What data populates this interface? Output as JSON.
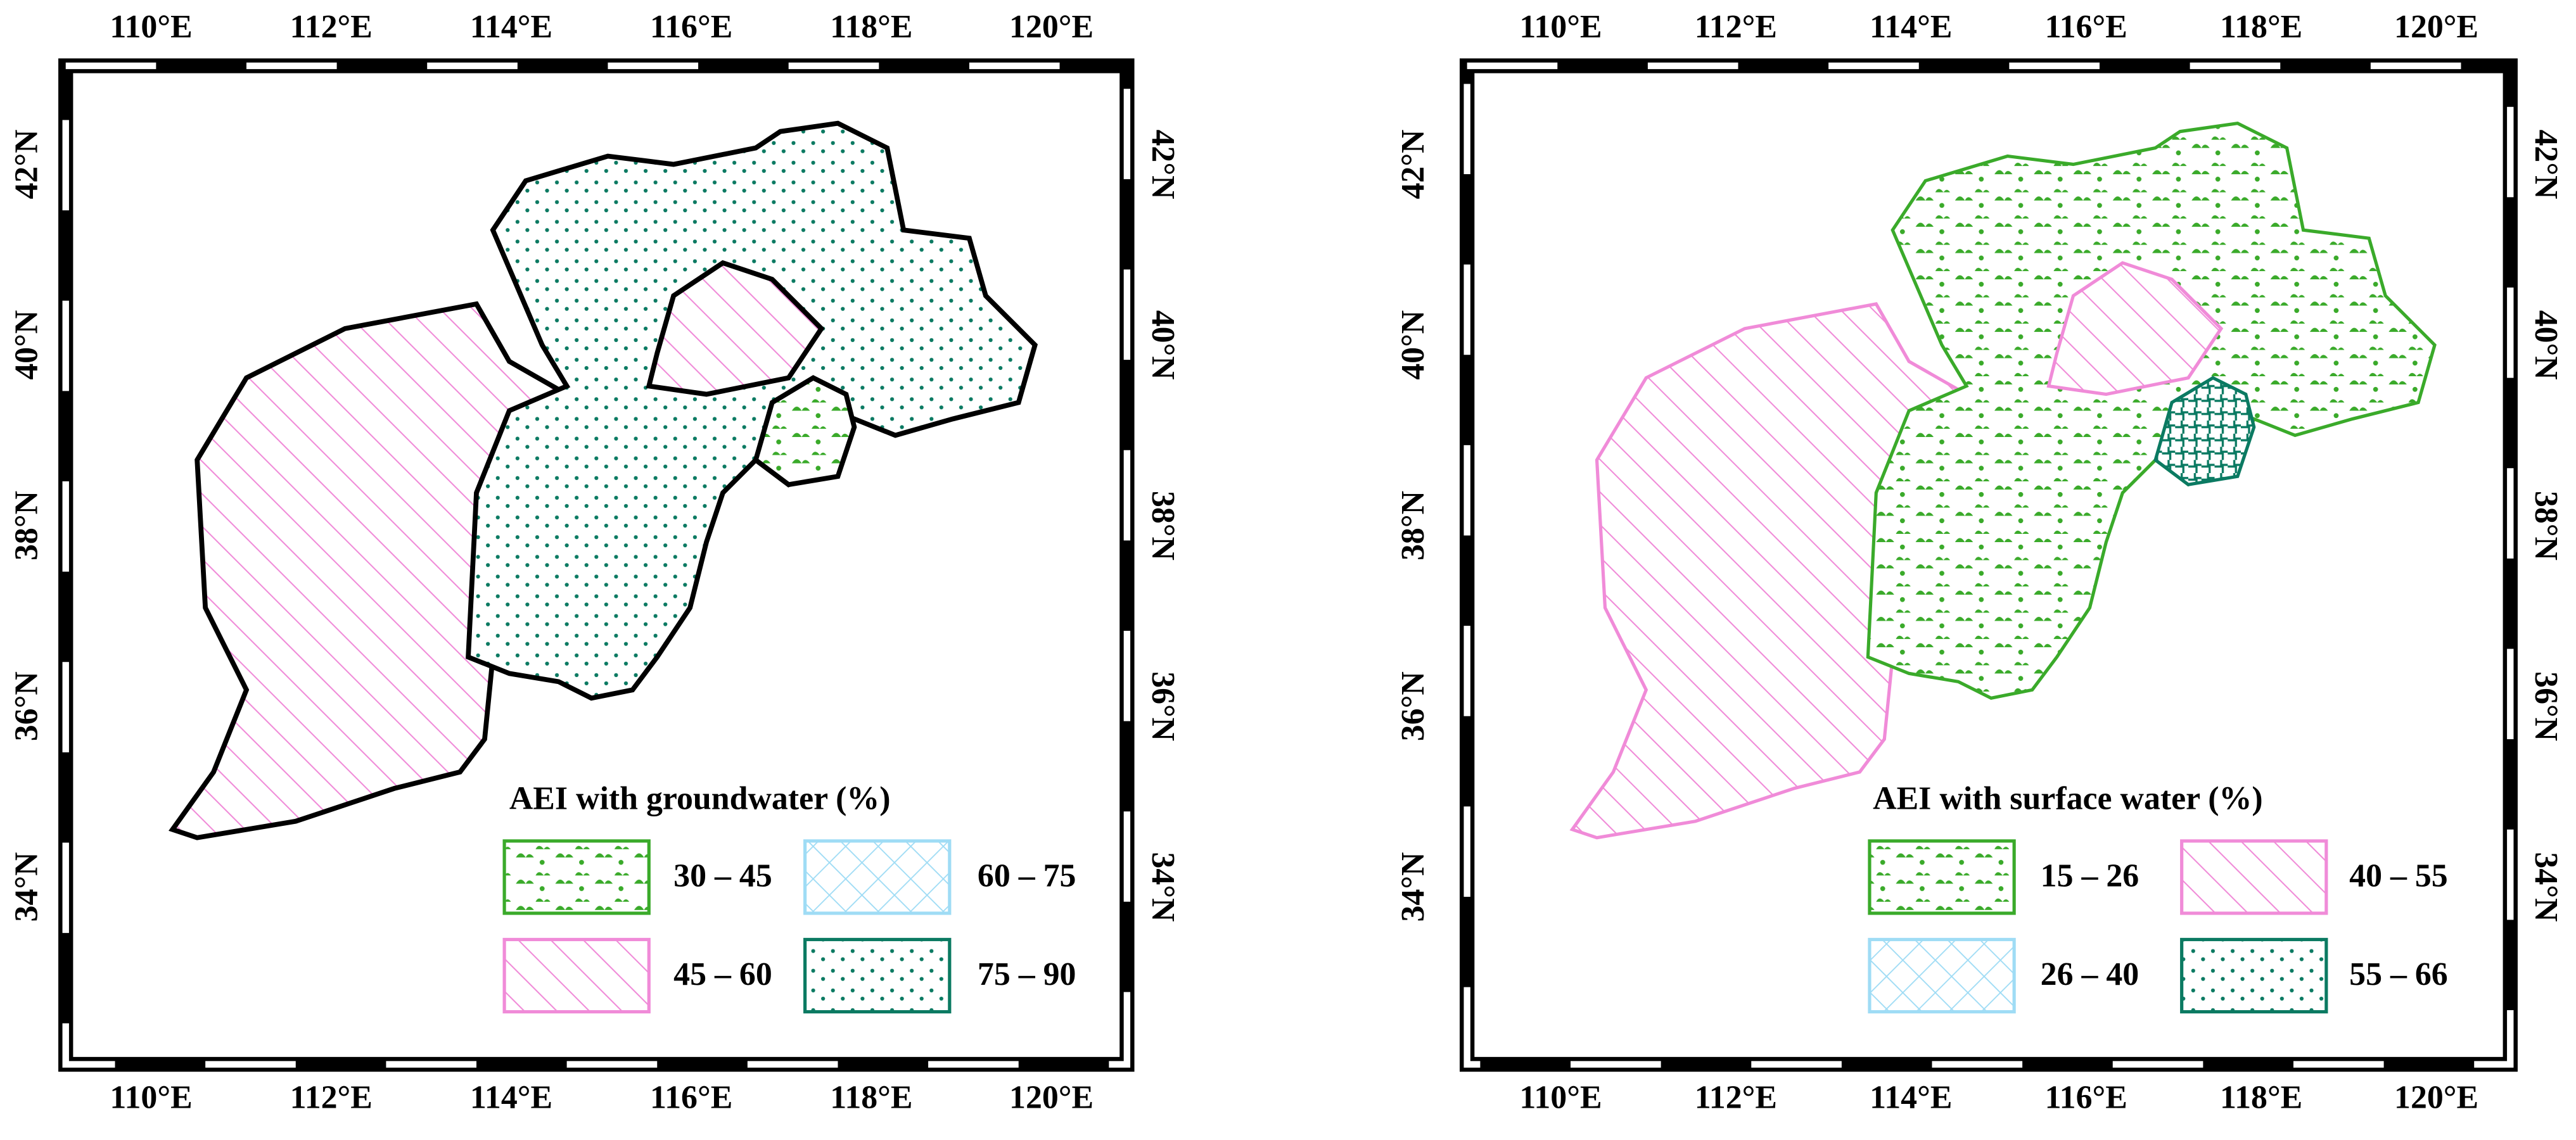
{
  "panels": [
    {
      "longitudes": [
        "110°E",
        "112°E",
        "114°E",
        "116°E",
        "118°E",
        "120°E"
      ],
      "latitudes": [
        "42°N",
        "40°N",
        "38°N",
        "36°N",
        "34°N"
      ],
      "legend": {
        "title": "AEI with groundwater (%)",
        "items": [
          "30 – 45",
          "60 – 75",
          "45 – 60",
          "75 – 90"
        ]
      }
    },
    {
      "longitudes": [
        "110°E",
        "112°E",
        "114°E",
        "116°E",
        "118°E",
        "120°E"
      ],
      "latitudes": [
        "42°N",
        "40°N",
        "38°N",
        "36°N",
        "34°N"
      ],
      "legend": {
        "title": "AEI with surface water (%)",
        "items": [
          "15 – 26",
          "40 – 55",
          "26 – 40",
          "55 – 66"
        ]
      }
    }
  ]
}
